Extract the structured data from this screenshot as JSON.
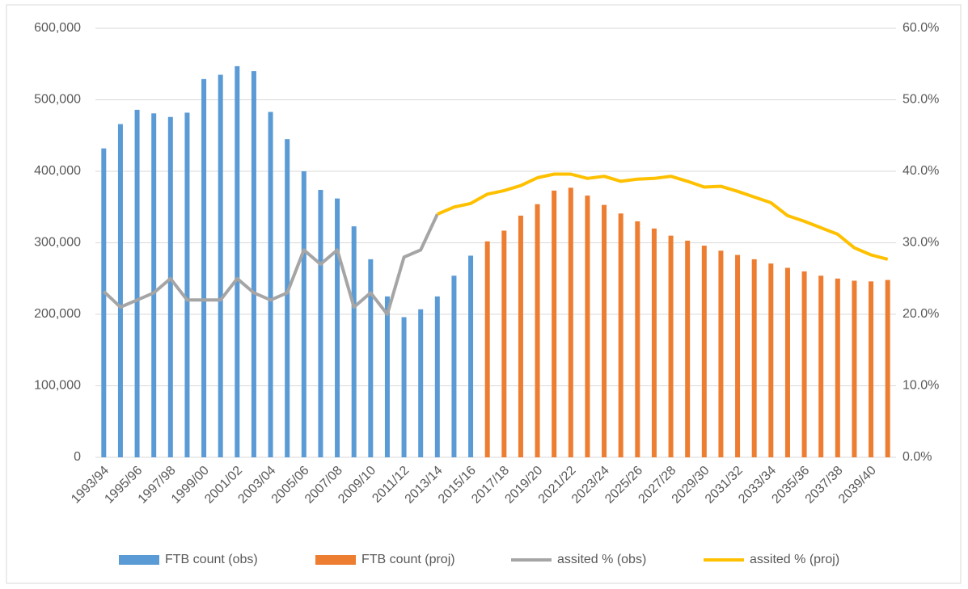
{
  "chart_data": {
    "type": "bar",
    "categories": [
      "1993/94",
      null,
      "1995/96",
      null,
      "1997/98",
      null,
      "1999/00",
      null,
      "2001/02",
      null,
      "2003/04",
      null,
      "2005/06",
      null,
      "2007/08",
      null,
      "2009/10",
      null,
      "2011/12",
      null,
      "2013/14",
      null,
      "2015/16",
      null,
      "2017/18",
      null,
      "2019/20",
      null,
      "2021/22",
      null,
      "2023/24",
      null,
      "2025/26",
      null,
      "2027/28",
      null,
      "2029/30",
      null,
      "2031/32",
      null,
      "2033/34",
      null,
      "2035/36",
      null,
      "2037/38",
      null,
      "2039/40",
      null
    ],
    "series": [
      {
        "name": "FTB count (obs)",
        "type": "bar",
        "color": "#5b9bd5",
        "values": [
          432000,
          466000,
          486000,
          481000,
          476000,
          482000,
          529000,
          535000,
          547000,
          540000,
          483000,
          445000,
          400000,
          374000,
          362000,
          323000,
          277000,
          225000,
          196000,
          207000,
          225000,
          254000,
          282000,
          null,
          null,
          null,
          null,
          null,
          null,
          null,
          null,
          null,
          null,
          null,
          null,
          null,
          null,
          null,
          null,
          null,
          null,
          null,
          null,
          null,
          null,
          null,
          null,
          null
        ]
      },
      {
        "name": "FTB count (proj)",
        "type": "bar",
        "color": "#ed7d31",
        "values": [
          null,
          null,
          null,
          null,
          null,
          null,
          null,
          null,
          null,
          null,
          null,
          null,
          null,
          null,
          null,
          null,
          null,
          null,
          null,
          null,
          null,
          null,
          null,
          302000,
          317000,
          338000,
          354000,
          373000,
          377000,
          366000,
          353000,
          341000,
          330000,
          320000,
          310000,
          303000,
          296000,
          289000,
          283000,
          277000,
          271000,
          265000,
          260000,
          254000,
          250000,
          247000,
          246000,
          248000
        ]
      },
      {
        "name": "assited % (obs)",
        "type": "line",
        "axis": "y2",
        "color": "#a5a5a5",
        "values": [
          23.2,
          21,
          22,
          23,
          25,
          22,
          22,
          22,
          25,
          23,
          22,
          23,
          29,
          27,
          29,
          21,
          23,
          20,
          28,
          29,
          34,
          null,
          null,
          null,
          null,
          null,
          null,
          null,
          null,
          null,
          null,
          null,
          null,
          null,
          null,
          null,
          null,
          null,
          null,
          null,
          null,
          null,
          null,
          null,
          null,
          null,
          null,
          null
        ]
      },
      {
        "name": "assited % (proj)",
        "type": "line",
        "axis": "y2",
        "color": "#ffc000",
        "values": [
          null,
          null,
          null,
          null,
          null,
          null,
          null,
          null,
          null,
          null,
          null,
          null,
          null,
          null,
          null,
          null,
          null,
          null,
          null,
          null,
          34,
          35,
          35.5,
          36.8,
          37.3,
          38,
          39.1,
          39.6,
          39.6,
          39,
          39.3,
          38.6,
          38.9,
          39,
          39.3,
          38.6,
          37.8,
          37.9,
          37.2,
          36.4,
          35.6,
          33.8,
          33,
          32.1,
          31.2,
          29.3,
          28.3,
          27.7
        ]
      }
    ],
    "ylim": [
      0,
      600000
    ],
    "yticks": [
      0,
      {
        "value": 100000,
        "label": "100,000"
      },
      {
        "value": 200000,
        "label": "200,000"
      },
      {
        "value": 300000,
        "label": "300,000"
      },
      {
        "value": 400000,
        "label": "400,000"
      },
      {
        "value": 500000,
        "label": "500,000"
      },
      {
        "value": 600000,
        "label": "600,000"
      }
    ],
    "y2lim": [
      0,
      60
    ],
    "y2ticks": [
      {
        "value": 0,
        "label": "0.0%"
      },
      {
        "value": 10,
        "label": "10.0%"
      },
      {
        "value": 20,
        "label": "20.0%"
      },
      {
        "value": 30,
        "label": "30.0%"
      },
      {
        "value": 40,
        "label": "40.0%"
      },
      {
        "value": 50,
        "label": "50.0%"
      },
      {
        "value": 60,
        "label": "60.0%"
      }
    ],
    "grid": true,
    "legend": "bottom"
  }
}
